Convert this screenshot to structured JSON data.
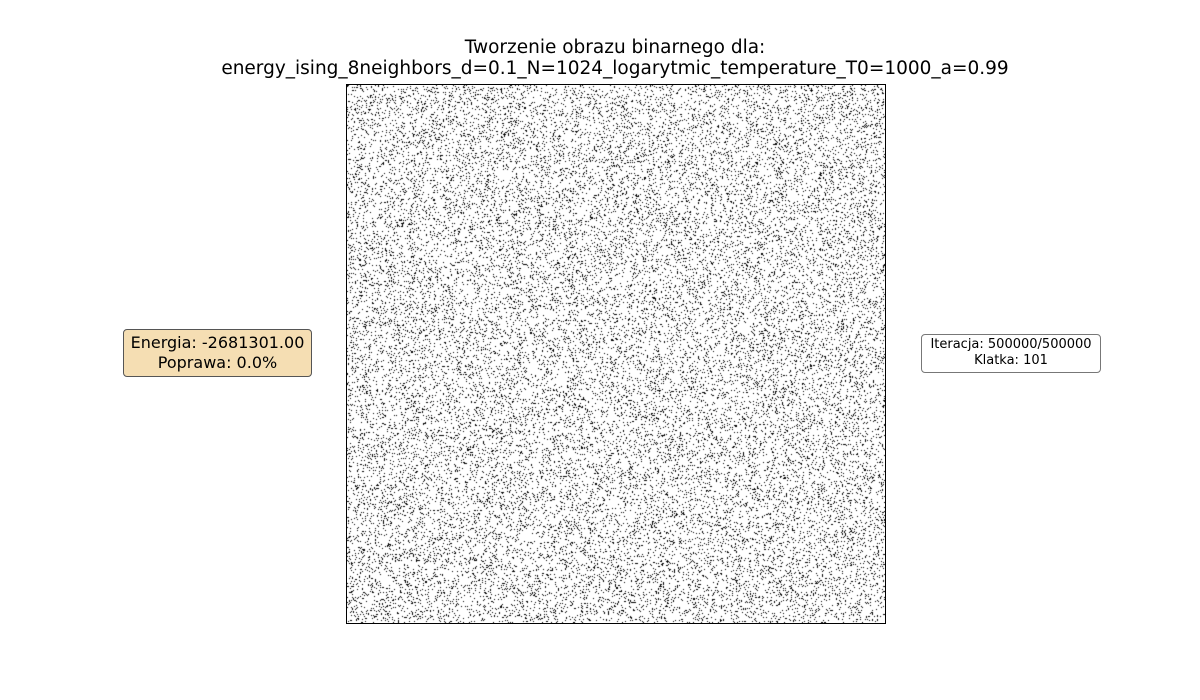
{
  "chart_data": {
    "type": "heatmap",
    "title_line1": "Tworzenie obrazu binarnego dla:",
    "title_line2": "energy_ising_8neighbors_d=0.1_N=1024_logarytmic_temperature_T0=1000_a=0.99",
    "grid_size": 1024,
    "density": 0.1,
    "colors": {
      "on": "#000000",
      "off": "#ffffff"
    },
    "axes_visible": false
  },
  "energy_box": {
    "energy_text": "Energia: -2681301.00",
    "improvement_text": "Poprawa: 0.0%",
    "background": "#f5deb3"
  },
  "info_box": {
    "iteration_text": "Iteracja: 500000/500000",
    "frame_text": "Klatka: 101"
  }
}
